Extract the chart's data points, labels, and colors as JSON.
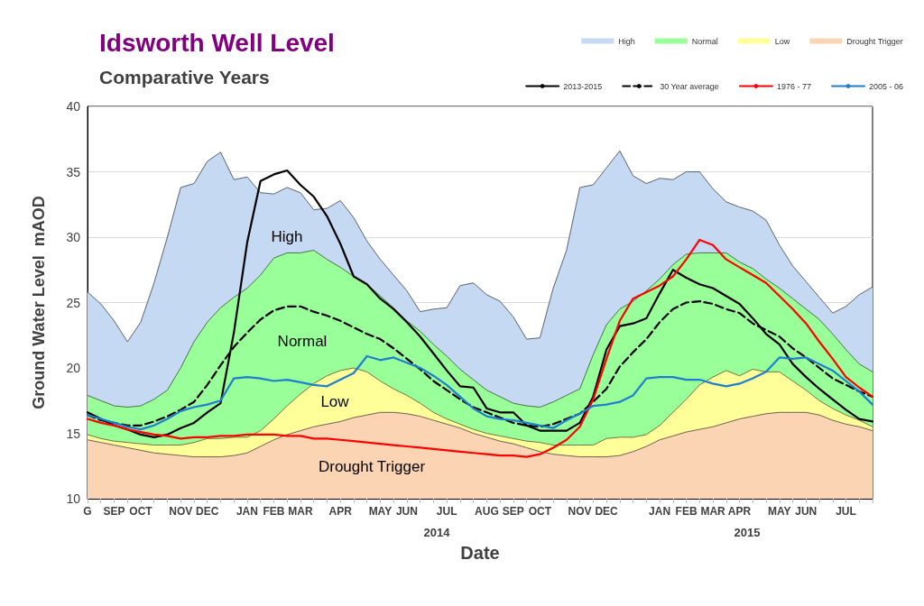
{
  "chart_data": {
    "type": "area",
    "title": "Idsworth Well Level",
    "subtitle": "Comparative Years",
    "xlabel": "Date",
    "ylabel": "Ground Water Level  mAOD",
    "categories": [
      "G",
      null,
      "SEP",
      null,
      "OCT",
      null,
      null,
      "NOV",
      null,
      "DEC",
      null,
      null,
      "JAN",
      null,
      "FEB",
      null,
      "MAR",
      null,
      null,
      "APR",
      null,
      null,
      "MAY",
      null,
      "JUN",
      null,
      null,
      "JUL",
      null,
      null,
      "AUG",
      null,
      "SEP",
      null,
      "OCT",
      null,
      null,
      "NOV",
      null,
      "DEC",
      null,
      null,
      null,
      "JAN",
      null,
      "FEB",
      null,
      "MAR",
      null,
      "APR",
      null,
      null,
      "MAY",
      null,
      "JUN",
      null,
      null,
      "JUL",
      null,
      null
    ],
    "series": [
      {
        "name": "High",
        "color": "#c6d9f3",
        "values": [
          25.8,
          24.9,
          23.6,
          22.0,
          23.5,
          26.5,
          30.0,
          33.8,
          34.1,
          35.8,
          36.5,
          34.4,
          34.6,
          33.4,
          33.3,
          33.8,
          33.4,
          32.1,
          32.2,
          32.8,
          31.5,
          29.7,
          28.3,
          27.1,
          25.9,
          24.3,
          24.5,
          24.6,
          26.3,
          26.5,
          25.6,
          25.1,
          23.9,
          22.2,
          22.3,
          26.1,
          29.0,
          33.8,
          34.0,
          35.3,
          36.6,
          34.7,
          34.1,
          34.5,
          34.4,
          35.0,
          35.0,
          33.7,
          32.7,
          32.3,
          32.0,
          31.3,
          29.4,
          27.8,
          26.6,
          25.4,
          24.2,
          24.7,
          25.6,
          26.2
        ]
      },
      {
        "name": "Normal",
        "color": "#99ff99",
        "values": [
          17.9,
          17.5,
          17.1,
          17.0,
          17.1,
          17.6,
          18.3,
          20.0,
          22.0,
          23.5,
          24.6,
          25.4,
          26.1,
          27.1,
          28.4,
          28.8,
          28.8,
          29.0,
          28.3,
          27.7,
          27.0,
          26.4,
          25.5,
          24.6,
          23.6,
          22.8,
          21.8,
          20.9,
          19.9,
          19.1,
          18.3,
          17.8,
          17.3,
          17.1,
          17.0,
          17.4,
          17.9,
          18.4,
          21.0,
          23.3,
          24.5,
          25.1,
          25.9,
          26.8,
          27.9,
          28.7,
          28.8,
          28.8,
          28.8,
          28.1,
          27.6,
          26.8,
          26.1,
          25.3,
          24.5,
          23.7,
          22.6,
          21.4,
          20.3,
          19.7
        ]
      },
      {
        "name": "Low",
        "color": "#ffff99",
        "values": [
          14.9,
          14.6,
          14.4,
          14.3,
          14.2,
          14.1,
          14.1,
          14.1,
          14.3,
          14.6,
          14.6,
          14.7,
          14.7,
          15.2,
          16.1,
          17.1,
          18.0,
          18.8,
          19.4,
          19.8,
          20.0,
          19.7,
          19.0,
          18.4,
          17.9,
          17.3,
          16.6,
          16.1,
          15.7,
          15.3,
          15.0,
          14.8,
          14.6,
          14.4,
          14.3,
          14.1,
          14.1,
          14.1,
          14.1,
          14.6,
          14.7,
          14.7,
          14.9,
          15.6,
          16.6,
          17.6,
          18.7,
          19.3,
          19.8,
          19.4,
          19.9,
          19.7,
          19.7,
          19.0,
          18.3,
          17.5,
          16.9,
          16.4,
          16.0,
          15.5
        ]
      },
      {
        "name": "Drought Trigger",
        "color": "#fbd4b4",
        "values": [
          14.5,
          14.3,
          14.1,
          13.9,
          13.7,
          13.5,
          13.4,
          13.3,
          13.2,
          13.2,
          13.2,
          13.3,
          13.5,
          14.0,
          14.5,
          14.9,
          15.2,
          15.5,
          15.7,
          15.9,
          16.2,
          16.4,
          16.6,
          16.6,
          16.5,
          16.3,
          16.0,
          15.7,
          15.4,
          15.0,
          14.7,
          14.4,
          14.2,
          13.9,
          13.6,
          13.4,
          13.3,
          13.2,
          13.2,
          13.2,
          13.3,
          13.6,
          14.0,
          14.5,
          14.8,
          15.1,
          15.3,
          15.5,
          15.8,
          16.1,
          16.3,
          16.5,
          16.6,
          16.6,
          16.6,
          16.4,
          16.0,
          15.7,
          15.5,
          15.2
        ]
      },
      {
        "name": "2013-2015",
        "type": "line",
        "color": "#000000",
        "values": [
          16.6,
          16.1,
          15.6,
          15.3,
          14.9,
          14.7,
          14.9,
          15.4,
          15.8,
          16.6,
          17.3,
          22.7,
          29.6,
          34.3,
          34.8,
          35.1,
          34.0,
          33.1,
          31.6,
          29.5,
          27.0,
          26.4,
          25.3,
          24.5,
          23.5,
          22.4,
          21.1,
          19.8,
          18.6,
          18.5,
          16.9,
          16.6,
          16.6,
          15.6,
          15.2,
          15.2,
          15.2,
          15.8,
          17.8,
          21.4,
          23.2,
          23.4,
          23.8,
          25.7,
          27.5,
          26.9,
          26.4,
          26.1,
          25.5,
          24.9,
          23.8,
          22.6,
          21.8,
          20.3,
          19.3,
          18.4,
          17.6,
          16.8,
          16.1,
          15.9
        ]
      },
      {
        "name": "30 Year average",
        "type": "line",
        "line_style": "dashed",
        "color": "#000000",
        "values": [
          16.4,
          16.0,
          15.8,
          15.6,
          15.6,
          15.9,
          16.3,
          16.8,
          17.4,
          18.7,
          20.2,
          21.6,
          22.7,
          23.7,
          24.4,
          24.7,
          24.7,
          24.3,
          24.0,
          23.6,
          23.1,
          22.6,
          22.2,
          21.5,
          20.7,
          19.9,
          19.0,
          18.3,
          17.6,
          17.0,
          16.6,
          16.2,
          15.8,
          15.6,
          15.5,
          15.7,
          16.1,
          16.5,
          17.4,
          18.4,
          20.1,
          21.2,
          22.2,
          23.5,
          24.5,
          25.0,
          25.1,
          24.9,
          24.5,
          24.2,
          23.4,
          22.9,
          22.4,
          21.5,
          20.8,
          20.0,
          19.2,
          18.7,
          18.2,
          17.8
        ]
      },
      {
        "name": "1976 - 77",
        "type": "line",
        "color": "#ff0000",
        "values": [
          16.1,
          15.8,
          15.6,
          15.3,
          15.1,
          14.9,
          14.8,
          14.6,
          14.7,
          14.7,
          14.8,
          14.8,
          14.9,
          14.9,
          14.9,
          14.8,
          14.8,
          14.6,
          14.6,
          14.5,
          14.4,
          14.3,
          14.2,
          14.1,
          14.0,
          13.9,
          13.8,
          13.7,
          13.6,
          13.5,
          13.4,
          13.3,
          13.3,
          13.2,
          13.4,
          13.9,
          14.5,
          15.5,
          17.6,
          20.7,
          23.6,
          25.3,
          25.8,
          26.3,
          27.0,
          28.3,
          29.8,
          29.4,
          28.3,
          27.7,
          27.1,
          26.5,
          25.5,
          24.5,
          23.4,
          22.0,
          20.7,
          19.3,
          18.5,
          17.8
        ]
      },
      {
        "name": "2005 - 06",
        "type": "line",
        "color": "#1f7fcf",
        "values": [
          16.4,
          16.1,
          15.8,
          15.5,
          15.3,
          15.6,
          16.1,
          16.7,
          17.0,
          17.2,
          17.5,
          19.2,
          19.3,
          19.2,
          19.0,
          19.1,
          18.9,
          18.7,
          18.6,
          19.1,
          19.6,
          20.9,
          20.6,
          20.8,
          20.4,
          20.0,
          19.4,
          18.7,
          17.8,
          16.9,
          16.3,
          16.1,
          16.0,
          15.8,
          15.6,
          15.4,
          16.0,
          16.5,
          17.1,
          17.2,
          17.4,
          17.9,
          19.2,
          19.3,
          19.3,
          19.1,
          19.1,
          18.8,
          18.6,
          18.8,
          19.2,
          19.7,
          20.8,
          20.7,
          20.8,
          20.3,
          19.8,
          19.0,
          18.2,
          17.2
        ]
      }
    ],
    "ylim": [
      10,
      40
    ],
    "yticks": [
      10,
      15,
      20,
      25,
      30,
      35,
      40
    ],
    "grid": "y",
    "legend": "top right",
    "marker": "none",
    "annotations": [
      "High",
      "Normal",
      "Low",
      "Drought Trigger",
      "2014",
      "2015"
    ]
  }
}
